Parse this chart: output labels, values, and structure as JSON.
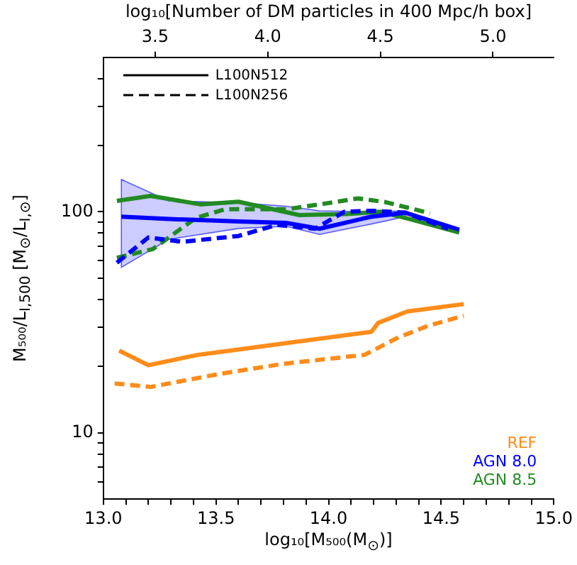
{
  "chart_data": {
    "type": "line",
    "xlabel": "log₁₀[M₅₀₀(M$_{⊙}$)]",
    "ylabel": "M₅₀₀/L$_{I,500}$ [M$_{⊙}$/L$_{I,⊙}$]",
    "x2label": "log₁₀[Number of DM particles in 400 Mpc/h box]",
    "annotations": [
      "L100N512",
      "L100N256"
    ],
    "legend": "bottom right",
    "marker": "none",
    "grid": false,
    "log": "y",
    "xlim": [
      13.0,
      15.0
    ],
    "xticks": [
      {
        "value": 13,
        "label": "13.0"
      },
      {
        "value": 13.1,
        "label": null
      },
      {
        "value": 13.2,
        "label": null
      },
      {
        "value": 13.3,
        "label": null
      },
      {
        "value": 13.4,
        "label": null
      },
      {
        "value": 13.5,
        "label": "13.5"
      },
      {
        "value": 13.6,
        "label": null
      },
      {
        "value": 13.7,
        "label": null
      },
      {
        "value": 13.8,
        "label": null
      },
      {
        "value": 13.9,
        "label": null
      },
      {
        "value": 14,
        "label": "14.0"
      },
      {
        "value": 14.1,
        "label": null
      },
      {
        "value": 14.2,
        "label": null
      },
      {
        "value": 14.3,
        "label": null
      },
      {
        "value": 14.4,
        "label": null
      },
      {
        "value": 14.5,
        "label": "14.5"
      },
      {
        "value": 14.6,
        "label": null
      },
      {
        "value": 14.7,
        "label": null
      },
      {
        "value": 14.8,
        "label": null
      },
      {
        "value": 14.9,
        "label": null
      },
      {
        "value": 15,
        "label": "15.0"
      }
    ],
    "x2lim": [
      3.27,
      5.27
    ],
    "x2ticks": [
      3.5,
      {
        "value": 4,
        "label": "4.0"
      },
      4.5,
      {
        "value": 5,
        "label": "5.0"
      }
    ],
    "ylim": [
      5,
      500
    ],
    "yticks": [
      {
        "value": 6,
        "label": null
      },
      {
        "value": 7,
        "label": null
      },
      {
        "value": 8,
        "label": null
      },
      {
        "value": 9,
        "label": null
      },
      10,
      {
        "value": 20,
        "label": null
      },
      {
        "value": 30,
        "label": null
      },
      {
        "value": 40,
        "label": null
      },
      {
        "value": 50,
        "label": null
      },
      {
        "value": 60,
        "label": null
      },
      {
        "value": 70,
        "label": null
      },
      {
        "value": 80,
        "label": null
      },
      {
        "value": 90,
        "label": null
      },
      100,
      {
        "value": 200,
        "label": null
      },
      {
        "value": 300,
        "label": null
      },
      {
        "value": 400,
        "label": null
      }
    ],
    "series": [
      {
        "name": "REF",
        "color": "#ff8c1a",
        "x": [
          13.07,
          13.2,
          13.42,
          13.81,
          14.19,
          14.22,
          14.35,
          14.6
        ],
        "values": [
          23.5,
          20.2,
          22.5,
          25.4,
          28.6,
          31.4,
          35.4,
          38.2
        ]
      },
      {
        "color": "#ff8c1a",
        "line_style": "dashed",
        "x": [
          13.05,
          13.21,
          13.51,
          13.8,
          14.16,
          14.31,
          14.44,
          14.6
        ],
        "values": [
          16.7,
          16.1,
          18.4,
          20.5,
          22.5,
          27,
          30.4,
          33.8
        ]
      },
      {
        "name": "AGN 8.0",
        "color": "#0000ff",
        "x": [
          13.08,
          13.29,
          13.6,
          13.81,
          13.96,
          14.19,
          14.34,
          14.58
        ],
        "values": [
          95,
          92.7,
          90.4,
          89,
          83.8,
          95,
          99,
          83
        ],
        "lower": [
          56,
          75,
          84,
          86,
          79,
          88,
          95,
          null
        ],
        "upper": [
          140,
          112,
          110,
          106,
          101,
          100,
          101,
          null
        ]
      },
      {
        "color": "#0000ff",
        "line_style": "dashed",
        "x": [
          13.06,
          13.2,
          13.35,
          13.6,
          13.77,
          13.94,
          14.07,
          14.19,
          14.34,
          14.53
        ],
        "values": [
          58.8,
          76.5,
          73.1,
          77.7,
          87.2,
          83.8,
          100,
          101,
          99,
          83.8
        ]
      },
      {
        "name": "AGN 8.5",
        "color": "#228b22",
        "x": [
          13.06,
          13.21,
          13.43,
          13.6,
          13.87,
          14.08,
          14.23,
          14.36,
          14.58
        ],
        "values": [
          112,
          118,
          108,
          111,
          96.6,
          97.6,
          100,
          92.7,
          80.5
        ]
      },
      {
        "color": "#228b22",
        "line_style": "dashed",
        "x": [
          13.06,
          13.22,
          13.41,
          13.54,
          13.81,
          13.96,
          14.13,
          14.25,
          14.45
        ],
        "values": [
          61.9,
          67.8,
          93.7,
          102.6,
          102.6,
          107.9,
          115,
          110.7,
          98.5
        ]
      }
    ]
  }
}
